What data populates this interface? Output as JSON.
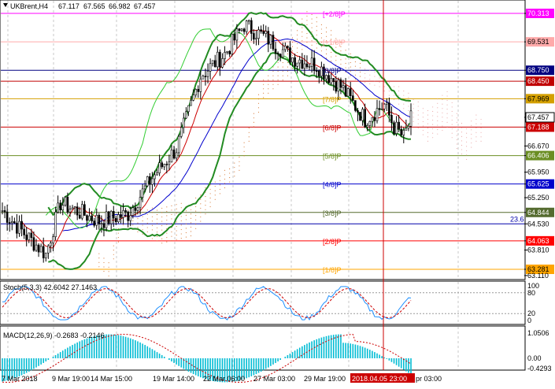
{
  "header": {
    "symbol": "UKBrent,H4",
    "open": "67.117",
    "high": "67.565",
    "low": "66.982",
    "close": "67.457"
  },
  "main_price_axis": {
    "ticks": [
      "70.313",
      "69.531",
      "68.750",
      "68.450",
      "67.969",
      "67.457",
      "67.188",
      "66.670",
      "66.406",
      "65.950",
      "65.625",
      "65.250",
      "64.844",
      "64.530",
      "64.063",
      "63.810",
      "63.281",
      "63.110"
    ],
    "highlighted": [
      {
        "value": "70.313",
        "color": "#ff00ff"
      },
      {
        "value": "69.531",
        "color": "#ffaaaa"
      },
      {
        "value": "68.750",
        "color": "#000080"
      },
      {
        "value": "68.450",
        "color": "#c00000"
      },
      {
        "value": "67.969",
        "color": "#d4a000"
      },
      {
        "value": "67.457",
        "color": "#ffffff"
      },
      {
        "value": "67.188",
        "color": "#cc0000"
      },
      {
        "value": "66.406",
        "color": "#6b8e23"
      },
      {
        "value": "65.625",
        "color": "#0000cc"
      },
      {
        "value": "64.844",
        "color": "#556b2f"
      },
      {
        "value": "64.063",
        "color": "#ff0000"
      },
      {
        "value": "63.281",
        "color": "#ffa500"
      }
    ]
  },
  "murrey_levels": [
    {
      "label": "[+2/8]P",
      "value": 70.313,
      "color": "#ff00ff"
    },
    {
      "label": "[+1/8]P",
      "value": 69.531,
      "color": "#ffaaaa"
    },
    {
      "label": "[8/8]P",
      "value": 68.75,
      "color": "#000080"
    },
    {
      "label": "[7/8]P",
      "value": 67.969,
      "color": "#d4a000"
    },
    {
      "label": "[6/8]P",
      "value": 67.188,
      "color": "#cc0000"
    },
    {
      "label": "[5/8]P",
      "value": 66.406,
      "color": "#6b8e23"
    },
    {
      "label": "[4/8]P",
      "value": 65.625,
      "color": "#0000cc"
    },
    {
      "label": "[3/8]P",
      "value": 64.844,
      "color": "#556b2f"
    },
    {
      "label": "[2/8]P",
      "value": 64.063,
      "color": "#ff0000"
    },
    {
      "label": "[1/8]P",
      "value": 63.281,
      "color": "#ffa500"
    }
  ],
  "other_lines": [
    {
      "value": 68.45,
      "color": "#c00000",
      "label": ""
    },
    {
      "value": 64.53,
      "color": "#0000aa",
      "label": "23.6"
    }
  ],
  "stochastic": {
    "title": "Stoch(5,3,3) 42.6042 27.1463",
    "axis": [
      "100",
      "80",
      "20",
      "0"
    ]
  },
  "macd": {
    "title": "MACD(12,26,9) -0.2683 -0.2146",
    "axis": [
      "1.0506",
      "0.00",
      "-0.4293"
    ]
  },
  "time_axis": {
    "labels": [
      "7 Mar 2018",
      "9 Mar 19:00",
      "14 Mar 15:00",
      "19 Mar 14:00",
      "22 Mar 06:00",
      "27 Mar 03:00",
      "29 Mar 19:00",
      "2018.04.05 23:00",
      "pr 03:00"
    ],
    "highlight": "2018.04.05 23:00"
  },
  "colors": {
    "bollinger": "#228b22",
    "ma_blue": "#0000cd",
    "ma_red": "#cc0000",
    "lime_line": "#32cd32",
    "cloud": "#d2691e",
    "stoch_main": "#1e90ff",
    "stoch_signal": "#cc0000",
    "macd_hist": "#00bcd4",
    "macd_signal": "#cc0000",
    "grid": "#c8c8c8"
  }
}
